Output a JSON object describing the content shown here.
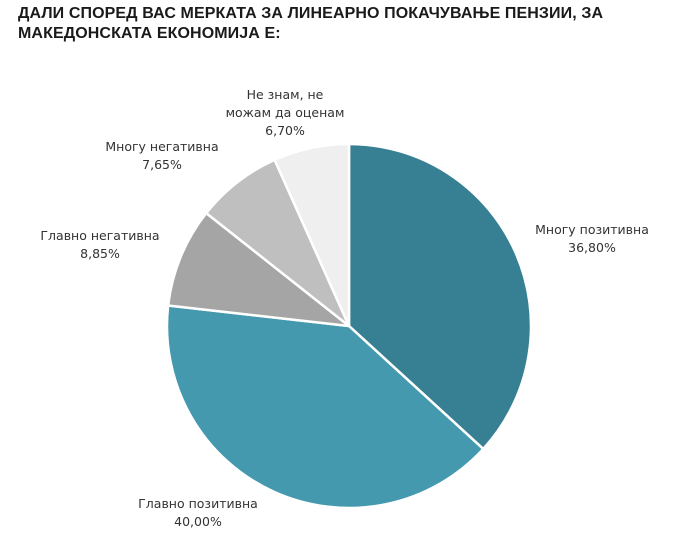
{
  "chart_data": {
    "type": "pie",
    "title": "ДАЛИ СПОРЕД ВАС МЕРКАТА ЗА ЛИНЕАРНО ПОКАЧУВАЊЕ ПЕНЗИИ, ЗА МАКЕДОНСКАТА ЕКОНОМИЈА Е:",
    "slices": [
      {
        "label": "Многу позитивна",
        "value": 36.8,
        "value_text": "36,80%",
        "color": "#377f93"
      },
      {
        "label": "Главно позитивна",
        "value": 40.0,
        "value_text": "40,00%",
        "color": "#4499ae"
      },
      {
        "label": "Главно негативна",
        "value": 8.85,
        "value_text": "8,85%",
        "color": "#a5a5a5"
      },
      {
        "label": "Многу негативна",
        "value": 7.65,
        "value_text": "7,65%",
        "color": "#bfbfbf"
      },
      {
        "label": "Не знам, не можам да оценам",
        "value": 6.7,
        "value_text": "6,70%",
        "color": "#efefef"
      }
    ]
  }
}
